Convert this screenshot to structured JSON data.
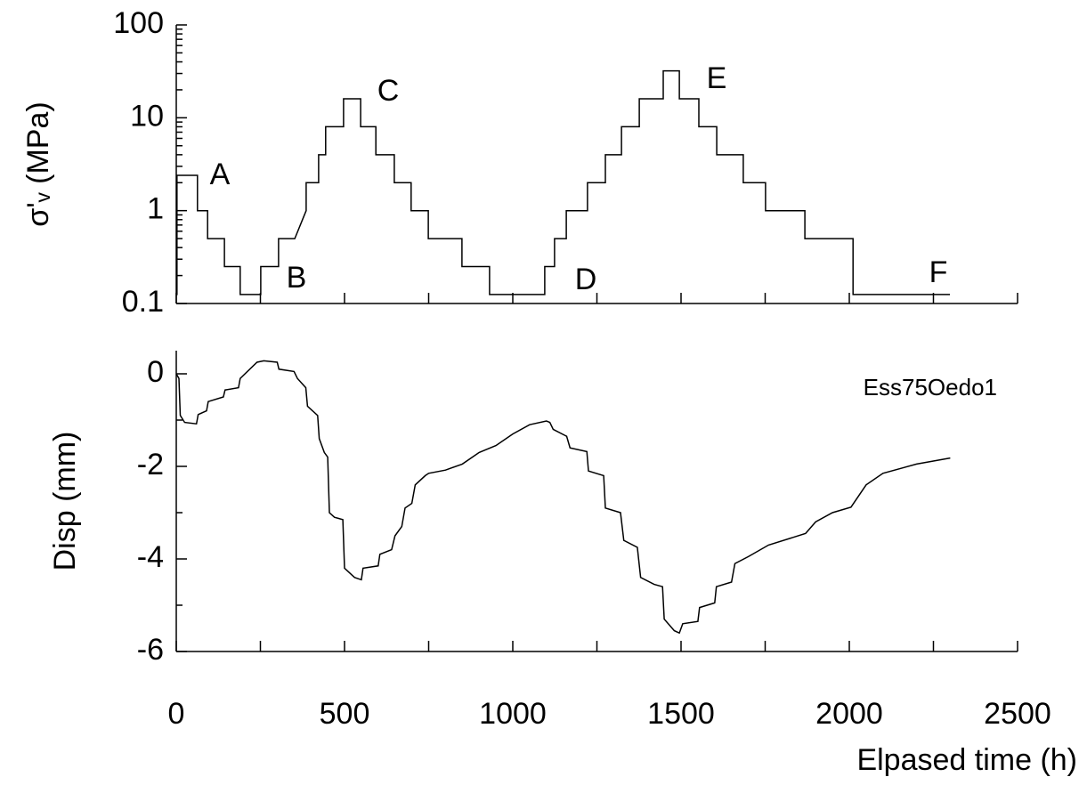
{
  "chart_data": [
    {
      "type": "line",
      "y_label": "σ'ᵥ (MPa)",
      "log_y": true,
      "color": "#000000",
      "x": [
        0,
        2,
        2,
        63,
        63,
        93,
        93,
        143,
        143,
        190,
        190,
        251,
        251,
        304,
        304,
        352,
        386,
        386,
        423,
        423,
        444,
        444,
        497,
        497,
        548,
        548,
        593,
        593,
        648,
        648,
        698,
        698,
        749,
        749,
        849,
        849,
        931,
        931,
        1095,
        1095,
        1124,
        1124,
        1159,
        1159,
        1222,
        1222,
        1275,
        1275,
        1323,
        1323,
        1376,
        1376,
        1447,
        1447,
        1495,
        1495,
        1553,
        1553,
        1606,
        1606,
        1685,
        1685,
        1751,
        1751,
        1868,
        1868,
        2011,
        2011,
        2299
      ],
      "values": [
        0.125,
        0.125,
        2.4,
        2.4,
        1,
        1,
        0.5,
        0.5,
        0.25,
        0.25,
        0.125,
        0.125,
        0.25,
        0.25,
        0.5,
        0.5,
        1,
        2,
        2,
        4,
        4,
        8,
        8,
        16,
        16,
        8,
        8,
        4,
        4,
        2,
        2,
        1,
        1,
        0.5,
        0.5,
        0.25,
        0.25,
        0.125,
        0.125,
        0.25,
        0.25,
        0.5,
        0.5,
        1,
        1,
        2,
        2,
        4,
        4,
        8,
        8,
        16,
        16,
        32,
        32,
        16,
        16,
        8,
        8,
        4,
        4,
        2,
        2,
        1,
        1,
        0.5,
        0.5,
        0.125,
        0.125
      ],
      "xlim": [
        0,
        2500
      ],
      "xticks": [
        0,
        500,
        1000,
        1500,
        2000,
        2500
      ],
      "minor_xticks": [
        250,
        750,
        1250,
        1750,
        2250
      ],
      "ylim": [
        0.1,
        100
      ],
      "yticks": [
        0.1,
        1,
        10,
        100
      ],
      "minor_yticks": [
        0.2,
        0.3,
        0.4,
        0.5,
        0.6,
        0.7,
        0.8,
        0.9,
        2,
        3,
        4,
        5,
        6,
        7,
        8,
        9,
        20,
        30,
        40,
        50,
        60,
        70,
        80,
        90
      ],
      "annotations": [
        "A",
        "B",
        "C",
        "D",
        "E",
        "F"
      ]
    },
    {
      "type": "line",
      "y_label": "Disp (mm)",
      "x_label": "Elpased time (h)",
      "color": "#000000",
      "x": [
        0,
        8,
        12,
        25,
        60,
        65,
        90,
        95,
        140,
        145,
        185,
        190,
        240,
        260,
        300,
        305,
        350,
        360,
        385,
        390,
        420,
        425,
        440,
        450,
        455,
        470,
        495,
        500,
        530,
        550,
        555,
        600,
        605,
        640,
        650,
        670,
        680,
        700,
        710,
        740,
        750,
        800,
        850,
        900,
        950,
        1000,
        1050,
        1100,
        1110,
        1120,
        1160,
        1170,
        1220,
        1225,
        1270,
        1275,
        1320,
        1330,
        1370,
        1380,
        1420,
        1445,
        1450,
        1480,
        1495,
        1505,
        1550,
        1555,
        1600,
        1605,
        1650,
        1660,
        1700,
        1760,
        1870,
        1900,
        1950,
        2005,
        2050,
        2100,
        2200,
        2300
      ],
      "values": [
        0,
        -0.1,
        -0.9,
        -1.05,
        -1.08,
        -0.88,
        -0.8,
        -0.6,
        -0.5,
        -0.35,
        -0.3,
        -0.1,
        0.25,
        0.28,
        0.25,
        0.1,
        0.05,
        -0.1,
        -0.3,
        -0.7,
        -0.9,
        -1.4,
        -1.7,
        -1.8,
        -3.0,
        -3.1,
        -3.15,
        -4.2,
        -4.4,
        -4.45,
        -4.2,
        -4.15,
        -3.9,
        -3.8,
        -3.5,
        -3.3,
        -2.9,
        -2.8,
        -2.4,
        -2.2,
        -2.15,
        -2.08,
        -1.95,
        -1.7,
        -1.55,
        -1.3,
        -1.1,
        -1.02,
        -1.05,
        -1.2,
        -1.35,
        -1.6,
        -1.68,
        -2.1,
        -2.2,
        -2.9,
        -3.0,
        -3.6,
        -3.75,
        -4.4,
        -4.55,
        -4.6,
        -5.3,
        -5.55,
        -5.6,
        -5.4,
        -5.35,
        -5.05,
        -4.95,
        -4.6,
        -4.5,
        -4.1,
        -3.95,
        -3.7,
        -3.45,
        -3.2,
        -3.0,
        -2.88,
        -2.4,
        -2.15,
        -1.95,
        -1.82
      ],
      "xlim": [
        0,
        2500
      ],
      "xticks": [
        0,
        500,
        1000,
        1500,
        2000,
        2500
      ],
      "minor_xticks": [
        250,
        750,
        1250,
        1750,
        2250
      ],
      "ylim": [
        -6,
        0.5
      ],
      "yticks": [
        -6,
        -4,
        -2,
        0
      ],
      "minor_yticks": [
        -5,
        -3,
        -1
      ],
      "annotations": [
        "Ess75Oedo1"
      ]
    }
  ]
}
